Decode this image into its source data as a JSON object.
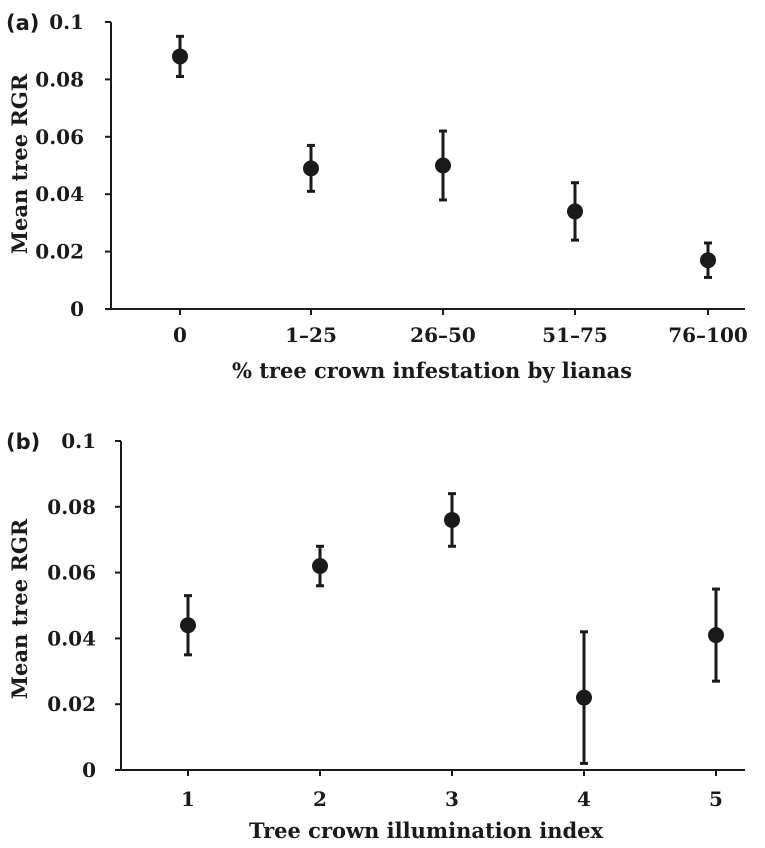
{
  "chart_data": [
    {
      "type": "scatter",
      "panel_label": "(a)",
      "categories": [
        "0",
        "1–25",
        "26–50",
        "51–75",
        "76–100"
      ],
      "values": [
        0.088,
        0.049,
        0.05,
        0.034,
        0.017
      ],
      "error_low": [
        0.081,
        0.041,
        0.038,
        0.024,
        0.011
      ],
      "error_high": [
        0.095,
        0.057,
        0.062,
        0.044,
        0.023
      ],
      "xlabel": "% tree crown infestation by lianas",
      "ylabel": "Mean tree RGR",
      "ylim": [
        0,
        0.1
      ],
      "yticks": [
        "0",
        "0.02",
        "0.04",
        "0.06",
        "0.08",
        "0.1"
      ],
      "grid": false
    },
    {
      "type": "scatter",
      "panel_label": "(b)",
      "categories": [
        "1",
        "2",
        "3",
        "4",
        "5"
      ],
      "values": [
        0.044,
        0.062,
        0.076,
        0.022,
        0.041
      ],
      "error_low": [
        0.035,
        0.056,
        0.068,
        0.002,
        0.027
      ],
      "error_high": [
        0.053,
        0.068,
        0.084,
        0.042,
        0.055
      ],
      "xlabel": "Tree crown illumination index",
      "ylabel": "Mean tree RGR",
      "ylim": [
        0,
        0.1
      ],
      "yticks": [
        "0",
        "0.02",
        "0.04",
        "0.06",
        "0.08",
        "0.1"
      ],
      "grid": false
    }
  ]
}
